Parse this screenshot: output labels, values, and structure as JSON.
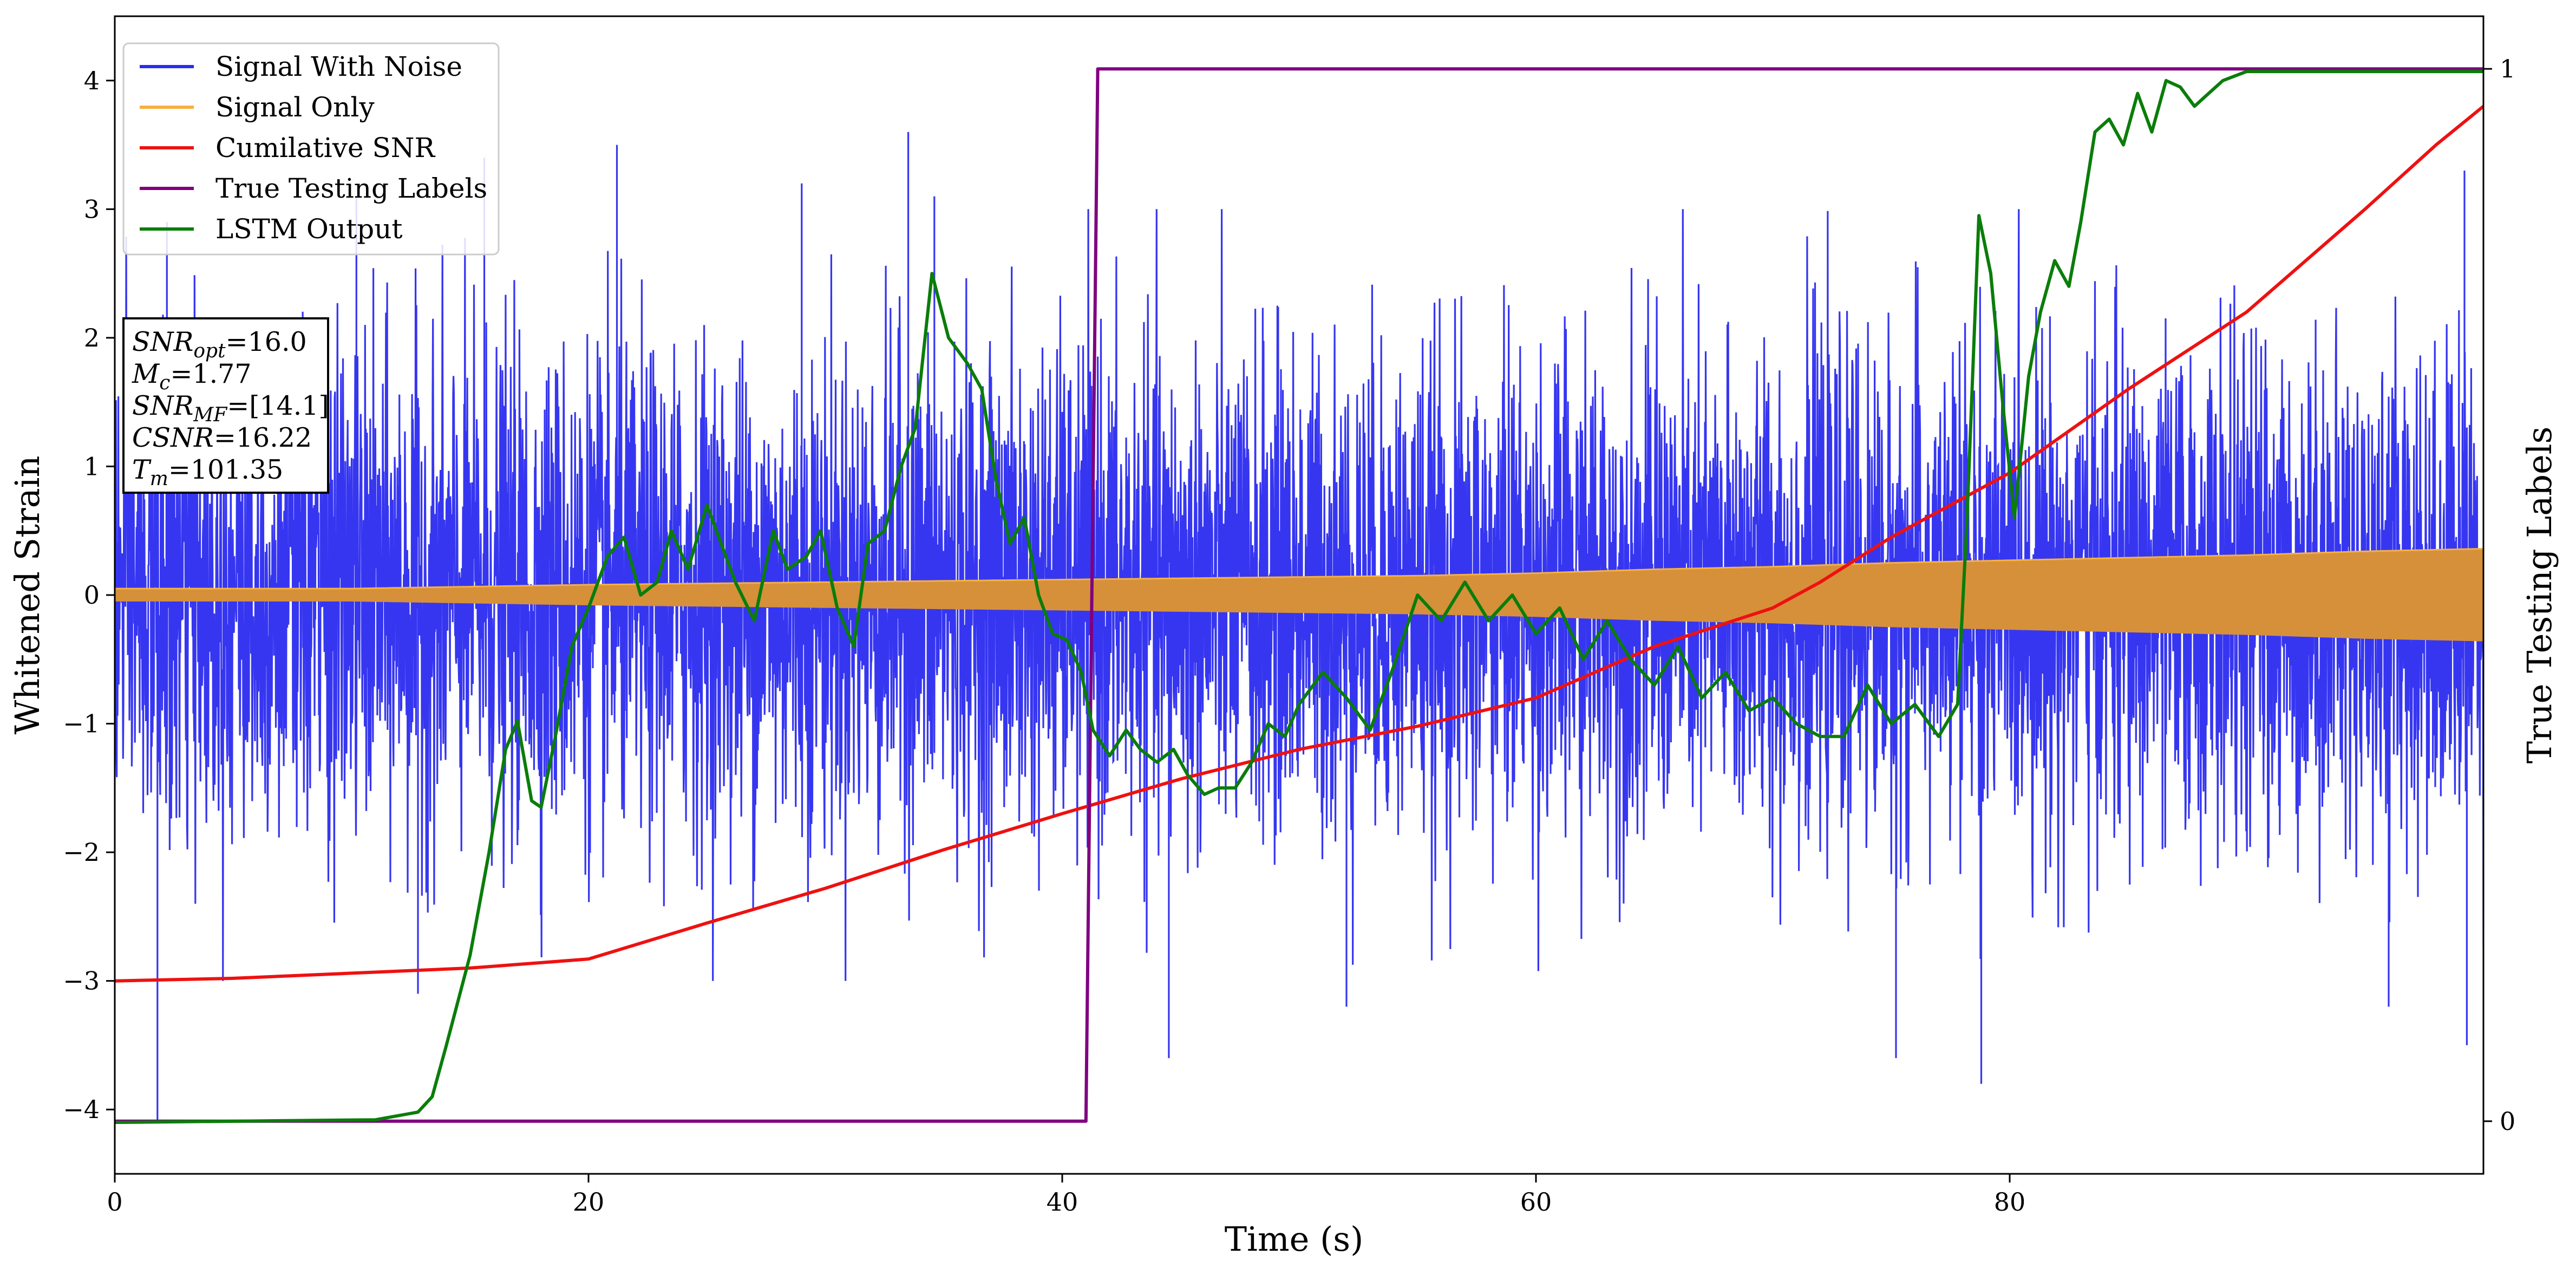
{
  "chart_data": {
    "type": "line",
    "xlabel": "Time (s)",
    "ylabel": "Whitened Strain",
    "y2label": "True Testing Labels",
    "xlim": [
      0,
      100
    ],
    "ylim": [
      -4.5,
      4.5
    ],
    "y2lim": [
      -0.05,
      1.05
    ],
    "x_ticks": [
      0,
      20,
      40,
      60,
      80
    ],
    "y_ticks": [
      -4,
      -3,
      -2,
      -1,
      0,
      1,
      2,
      3,
      4
    ],
    "y2_ticks": [
      0,
      1
    ],
    "grid": false,
    "legend_position": "top-left",
    "legend": [
      {
        "label": "Signal With Noise",
        "color": "#2b2bf0"
      },
      {
        "label": "Signal Only",
        "color": "#f5b042"
      },
      {
        "label": "Cumilative SNR",
        "color": "#ee1111"
      },
      {
        "label": "True Testing Labels",
        "color": "#800080"
      },
      {
        "label": "LSTM Output",
        "color": "#0a7d0a"
      }
    ],
    "annotation": {
      "lines": [
        {
          "base": "SNR",
          "sub": "opt",
          "value": "=16.0"
        },
        {
          "base": "M",
          "sub": "c",
          "value": "=1.77"
        },
        {
          "base": "SNR",
          "sub": "MF",
          "value": "=[14.1]"
        },
        {
          "base": "CSNR",
          "sub": "",
          "value": "=16.22"
        },
        {
          "base": "T",
          "sub": "m",
          "value": "=101.35"
        }
      ]
    },
    "series": [
      {
        "name": "Signal With Noise",
        "axis": "left",
        "color": "#2b2bf0",
        "noise_envelope": {
          "x": [
            0,
            20,
            40,
            60,
            80,
            100
          ],
          "typical_amplitude": [
            1.3,
            1.3,
            1.3,
            1.3,
            1.3,
            1.3
          ]
        },
        "spikes": [
          {
            "x": 1.8,
            "y": -4.1
          },
          {
            "x": 2.2,
            "y": 2.9
          },
          {
            "x": 10.2,
            "y": 3.1
          },
          {
            "x": 12.8,
            "y": -3.1
          },
          {
            "x": 15.6,
            "y": 3.4
          },
          {
            "x": 21.2,
            "y": 3.5
          },
          {
            "x": 29.0,
            "y": 3.2
          },
          {
            "x": 33.5,
            "y": 3.6
          },
          {
            "x": 34.6,
            "y": 3.1
          },
          {
            "x": 44.5,
            "y": -3.6
          },
          {
            "x": 52.0,
            "y": -3.2
          },
          {
            "x": 75.2,
            "y": -3.6
          },
          {
            "x": 78.8,
            "y": -3.8
          },
          {
            "x": 96.0,
            "y": -3.2
          },
          {
            "x": 99.3,
            "y": -3.5
          },
          {
            "x": 99.2,
            "y": 3.3
          }
        ]
      },
      {
        "name": "Signal Only",
        "axis": "left",
        "color": "#f5b042",
        "envelope": {
          "x": [
            0,
            10,
            20,
            40,
            55,
            60,
            65,
            70,
            75,
            80,
            85,
            90,
            95,
            100
          ],
          "amplitude": [
            0.05,
            0.05,
            0.08,
            0.12,
            0.15,
            0.17,
            0.2,
            0.22,
            0.25,
            0.27,
            0.29,
            0.31,
            0.34,
            0.36
          ]
        }
      },
      {
        "name": "Cumilative SNR",
        "axis": "left",
        "color": "#ee1111",
        "x": [
          0,
          5,
          10,
          15,
          20,
          25,
          30,
          35,
          40,
          45,
          50,
          55,
          60,
          65,
          70,
          72,
          75,
          80,
          85,
          90,
          95,
          98,
          100
        ],
        "y": [
          -3.0,
          -2.98,
          -2.94,
          -2.9,
          -2.83,
          -2.55,
          -2.28,
          -1.98,
          -1.7,
          -1.43,
          -1.2,
          -1.02,
          -0.8,
          -0.4,
          -0.1,
          0.1,
          0.45,
          0.95,
          1.6,
          2.2,
          3.0,
          3.5,
          3.8
        ]
      },
      {
        "name": "True Testing Labels",
        "axis": "right",
        "color": "#800080",
        "x": [
          0,
          41.0,
          41.5,
          100
        ],
        "y": [
          0,
          0,
          1,
          1
        ]
      },
      {
        "name": "LSTM Output",
        "axis": "left",
        "color": "#0a7d0a",
        "x": [
          0,
          11.0,
          12.8,
          13.4,
          14.0,
          15.0,
          15.8,
          16.5,
          17.0,
          17.6,
          18.0,
          18.6,
          19.3,
          20.0,
          20.8,
          21.5,
          22.2,
          22.9,
          23.5,
          24.2,
          25.0,
          25.6,
          26.2,
          27.0,
          27.8,
          28.4,
          29.2,
          29.8,
          30.5,
          31.2,
          31.8,
          32.5,
          33.2,
          33.8,
          34.5,
          35.2,
          36.0,
          36.6,
          37.2,
          37.8,
          38.4,
          39.0,
          39.6,
          40.2,
          40.8,
          41.3,
          42.0,
          42.7,
          43.3,
          44.0,
          44.7,
          45.3,
          46.0,
          46.6,
          47.3,
          48.0,
          48.7,
          49.4,
          50.0,
          51.0,
          52.0,
          53.0,
          54.0,
          55.0,
          56.0,
          57.0,
          58.0,
          59.0,
          60.0,
          61.0,
          62.0,
          63.0,
          64.0,
          65.0,
          66.0,
          67.0,
          68.0,
          69.0,
          70.0,
          71.0,
          72.0,
          73.0,
          74.0,
          75.0,
          76.0,
          77.0,
          77.8,
          78.2,
          78.7,
          79.2,
          79.7,
          80.2,
          80.8,
          81.3,
          81.9,
          82.5,
          83.0,
          83.6,
          84.2,
          84.8,
          85.4,
          86.0,
          86.6,
          87.2,
          87.8,
          88.4,
          89.0,
          90.0,
          95.0,
          100.0
        ],
        "y": [
          -4.1,
          -4.08,
          -4.02,
          -3.9,
          -3.5,
          -2.8,
          -2.0,
          -1.2,
          -0.98,
          -1.6,
          -1.65,
          -1.1,
          -0.4,
          -0.1,
          0.3,
          0.45,
          0.0,
          0.1,
          0.5,
          0.2,
          0.7,
          0.4,
          0.1,
          -0.2,
          0.5,
          0.2,
          0.3,
          0.5,
          -0.1,
          -0.4,
          0.4,
          0.5,
          1.0,
          1.3,
          2.5,
          2.0,
          1.8,
          1.6,
          0.9,
          0.4,
          0.6,
          0.0,
          -0.3,
          -0.35,
          -0.6,
          -1.05,
          -1.25,
          -1.05,
          -1.2,
          -1.3,
          -1.2,
          -1.4,
          -1.55,
          -1.5,
          -1.5,
          -1.3,
          -1.0,
          -1.1,
          -0.85,
          -0.6,
          -0.8,
          -1.05,
          -0.55,
          0.0,
          -0.2,
          0.1,
          -0.2,
          0.0,
          -0.3,
          -0.1,
          -0.5,
          -0.2,
          -0.5,
          -0.7,
          -0.4,
          -0.8,
          -0.6,
          -0.9,
          -0.8,
          -1.0,
          -1.1,
          -1.1,
          -0.7,
          -1.0,
          -0.85,
          -1.1,
          -0.85,
          0.6,
          2.95,
          2.5,
          1.5,
          0.6,
          1.7,
          2.2,
          2.6,
          2.4,
          2.9,
          3.6,
          3.7,
          3.5,
          3.9,
          3.6,
          4.0,
          3.95,
          3.8,
          3.9,
          4.0,
          4.07,
          4.07,
          4.07
        ]
      }
    ]
  }
}
